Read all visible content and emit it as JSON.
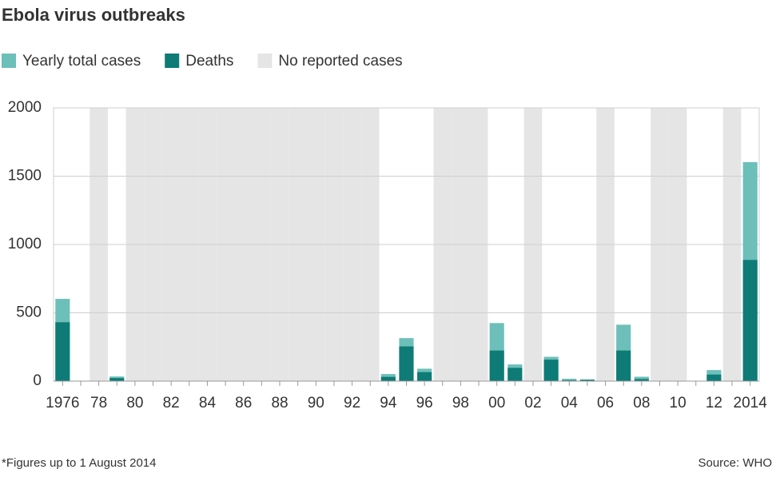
{
  "chart_data": {
    "type": "bar",
    "title": "Ebola virus outbreaks",
    "categories": [
      "1976",
      null,
      "78",
      null,
      "80",
      null,
      "82",
      null,
      "84",
      null,
      "86",
      null,
      "88",
      null,
      "90",
      null,
      "92",
      null,
      "94",
      null,
      "96",
      null,
      "98",
      null,
      "00",
      null,
      "02",
      null,
      "04",
      null,
      "06",
      null,
      "08",
      null,
      "10",
      null,
      "12",
      null,
      "2014"
    ],
    "series": [
      {
        "name": "Yearly total cases",
        "color": "#6dbfba",
        "values": [
          602,
          1,
          null,
          34,
          null,
          null,
          null,
          null,
          null,
          null,
          null,
          null,
          null,
          null,
          null,
          null,
          null,
          null,
          52,
          315,
          91,
          null,
          null,
          null,
          425,
          122,
          null,
          178,
          17,
          12,
          null,
          413,
          32,
          null,
          null,
          1,
          81,
          null,
          1603
        ]
      },
      {
        "name": "Deaths",
        "color": "#0e7b76",
        "values": [
          431,
          1,
          null,
          22,
          null,
          null,
          null,
          null,
          null,
          null,
          null,
          null,
          null,
          null,
          null,
          null,
          null,
          null,
          31,
          254,
          66,
          null,
          null,
          null,
          224,
          97,
          null,
          157,
          7,
          10,
          null,
          224,
          15,
          null,
          null,
          1,
          48,
          null,
          887
        ]
      }
    ],
    "no_data": {
      "name": "No reported cases",
      "color": "#e5e5e5"
    },
    "ylim": [
      0,
      2000
    ],
    "yticks": [
      0,
      500,
      1000,
      1500,
      2000
    ],
    "grid": true,
    "footnote": "*Figures up to 1 August 2014",
    "source": "Source: WHO"
  }
}
